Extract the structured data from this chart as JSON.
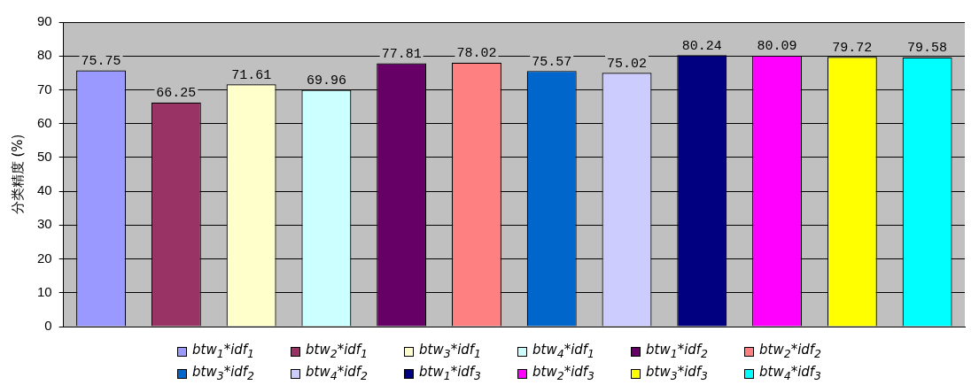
{
  "chart_data": {
    "type": "bar",
    "ylabel": "分类精度 (%)",
    "categories": [
      null
    ],
    "ylim": [
      0,
      90
    ],
    "yticks": [
      0,
      10,
      20,
      30,
      40,
      50,
      60,
      70,
      80,
      90
    ],
    "grid": "y",
    "legend": "bottom",
    "data_labels": true,
    "series": [
      {
        "name": "btw$_{1}$*idf$_{1}$",
        "color": "#9999ff",
        "values": [
          75.75
        ]
      },
      {
        "name": "btw$_{2}$*idf$_{1}$",
        "color": "#993366",
        "values": [
          66.25
        ]
      },
      {
        "name": "btw$_{3}$*idf$_{1}$",
        "color": "#ffffcc",
        "values": [
          71.61
        ]
      },
      {
        "name": "btw$_{4}$*idf$_{1}$",
        "color": "#ccffff",
        "values": [
          69.96
        ]
      },
      {
        "name": "btw$_{1}$*idf$_{2}$",
        "color": "#660066",
        "values": [
          77.81
        ]
      },
      {
        "name": "btw$_{2}$*idf$_{2}$",
        "color": "#ff8080",
        "values": [
          78.02
        ]
      },
      {
        "name": "btw$_{3}$*idf$_{2}$",
        "color": "#0066cc",
        "values": [
          75.57
        ]
      },
      {
        "name": "btw$_{4}$*idf$_{2}$",
        "color": "#ccccff",
        "values": [
          75.02
        ]
      },
      {
        "name": "btw$_{1}$*idf$_{3}$",
        "color": "#000080",
        "values": [
          80.24
        ]
      },
      {
        "name": "btw$_{2}$*idf$_{3}$",
        "color": "#ff00ff",
        "values": [
          80.09
        ]
      },
      {
        "name": "btw$_{3}$*idf$_{3}$",
        "color": "#ffff00",
        "values": [
          79.72
        ]
      },
      {
        "name": "btw$_{4}$*idf$_{3}$",
        "color": "#00ffff",
        "values": [
          79.58
        ]
      }
    ]
  }
}
